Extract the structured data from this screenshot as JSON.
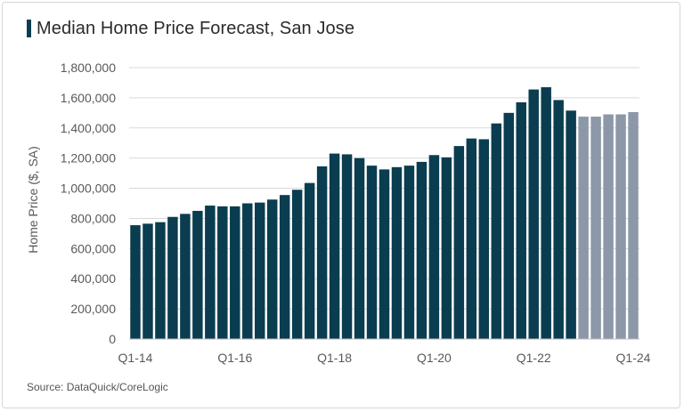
{
  "title": "Median Home Price Forecast, San Jose",
  "source": "Source: DataQuick/CoreLogic",
  "colors": {
    "actual": "#0a3d4f",
    "forecast": "#8c98a8",
    "title_marker": "#0a3d4f",
    "grid": "#d9d9d9"
  },
  "chart_data": {
    "type": "bar",
    "title": "Median Home Price Forecast, San Jose",
    "xlabel": "",
    "ylabel": "Home Price ($, SA)",
    "ylim": [
      0,
      1800000
    ],
    "yticks": [
      0,
      200000,
      400000,
      600000,
      800000,
      1000000,
      1200000,
      1400000,
      1600000,
      1800000
    ],
    "ytick_labels": [
      "0",
      "200,000",
      "400,000",
      "600,000",
      "800,000",
      "1,000,000",
      "1,200,000",
      "1,400,000",
      "1,600,000",
      "1,800,000"
    ],
    "xtick_labels": [
      {
        "index": 0,
        "label": "Q1-14"
      },
      {
        "index": 8,
        "label": "Q1-16"
      },
      {
        "index": 16,
        "label": "Q1-18"
      },
      {
        "index": 24,
        "label": "Q1-20"
      },
      {
        "index": 32,
        "label": "Q1-22"
      },
      {
        "index": 40,
        "label": "Q1-24"
      }
    ],
    "grid": true,
    "categories": [
      "Q1-14",
      "Q2-14",
      "Q3-14",
      "Q4-14",
      "Q1-15",
      "Q2-15",
      "Q3-15",
      "Q4-15",
      "Q1-16",
      "Q2-16",
      "Q3-16",
      "Q4-16",
      "Q1-17",
      "Q2-17",
      "Q3-17",
      "Q4-17",
      "Q1-18",
      "Q2-18",
      "Q3-18",
      "Q4-18",
      "Q1-19",
      "Q2-19",
      "Q3-19",
      "Q4-19",
      "Q1-20",
      "Q2-20",
      "Q3-20",
      "Q4-20",
      "Q1-21",
      "Q2-21",
      "Q3-21",
      "Q4-21",
      "Q1-22",
      "Q2-22",
      "Q3-22",
      "Q4-22",
      "Q1-23",
      "Q2-23",
      "Q3-23",
      "Q4-23",
      "Q1-24"
    ],
    "values": [
      755000,
      765000,
      775000,
      810000,
      830000,
      850000,
      885000,
      880000,
      880000,
      900000,
      905000,
      925000,
      955000,
      990000,
      1035000,
      1145000,
      1230000,
      1225000,
      1200000,
      1150000,
      1125000,
      1140000,
      1150000,
      1175000,
      1220000,
      1205000,
      1280000,
      1330000,
      1325000,
      1430000,
      1500000,
      1570000,
      1655000,
      1670000,
      1585000,
      1515000,
      1475000,
      1475000,
      1490000,
      1490000,
      1505000
    ],
    "forecast_start_index": 36
  }
}
